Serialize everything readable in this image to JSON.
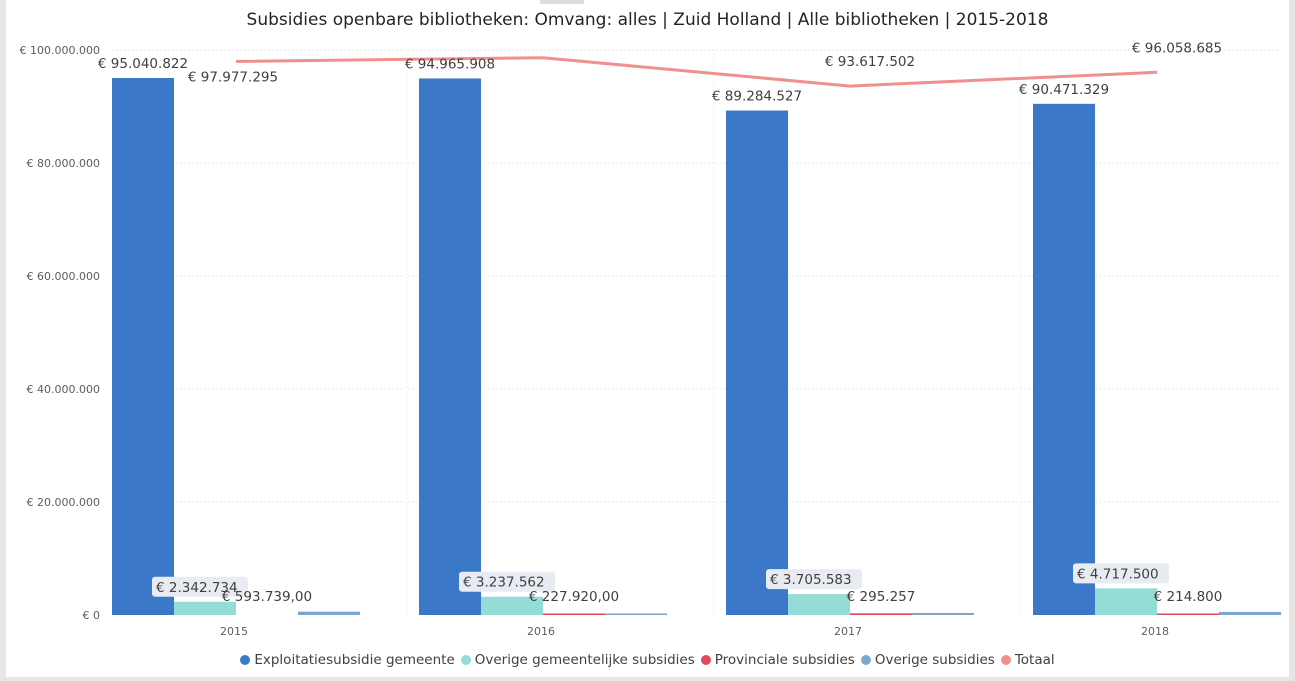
{
  "chart_data": {
    "type": "bar",
    "title": "Subsidies openbare bibliotheken: Omvang: alles | Zuid Holland | Alle bibliotheken | 2015-2018",
    "categories": [
      "2015",
      "2016",
      "2017",
      "2018"
    ],
    "ylim": [
      0,
      100000000
    ],
    "y_ticks": [
      "€ 0",
      "€ 20.000.000",
      "€ 40.000.000",
      "€ 60.000.000",
      "€ 80.000.000",
      "€ 100.000.000"
    ],
    "y_tick_values": [
      0,
      20000000,
      40000000,
      60000000,
      80000000,
      100000000
    ],
    "grid": true,
    "legend_position": "bottom",
    "series": [
      {
        "name": "Exploitatiesubsidie gemeente",
        "kind": "bar",
        "color": "#3c78c8",
        "values": [
          95040822,
          94965908,
          89284527,
          90471329
        ],
        "labels": [
          "€ 95.040.822",
          "€ 94.965.908",
          "€ 89.284.527",
          "€ 90.471.329"
        ]
      },
      {
        "name": "Overige gemeentelijke subsidies",
        "kind": "bar",
        "color": "#95dbd6",
        "values": [
          2342734,
          3237562,
          3705583,
          4717500
        ],
        "labels": [
          "€ 2.342.734",
          "€ 3.237.562",
          "€ 3.705.583",
          "€ 4.717.500"
        ]
      },
      {
        "name": "Provinciale subsidies",
        "kind": "bar",
        "color": "#e3495c",
        "values": [
          0,
          227920,
          295257,
          214800
        ],
        "labels": [
          "",
          "€ 227.920,00",
          "€ 295.257",
          "€ 214.800"
        ]
      },
      {
        "name": "Overige subsidies",
        "kind": "bar",
        "color": "#7ba7cf",
        "values": [
          593739,
          200000,
          350000,
          550000
        ],
        "labels": [
          "€ 593.739,00",
          "",
          "",
          ""
        ]
      },
      {
        "name": "Totaal",
        "kind": "line",
        "color": "#f0908e",
        "values": [
          97977295,
          98631390,
          93617502,
          96058685
        ],
        "labels": [
          "€ 97.977.295",
          "",
          "€ 93.617.502",
          "€ 96.058.685"
        ]
      }
    ]
  }
}
